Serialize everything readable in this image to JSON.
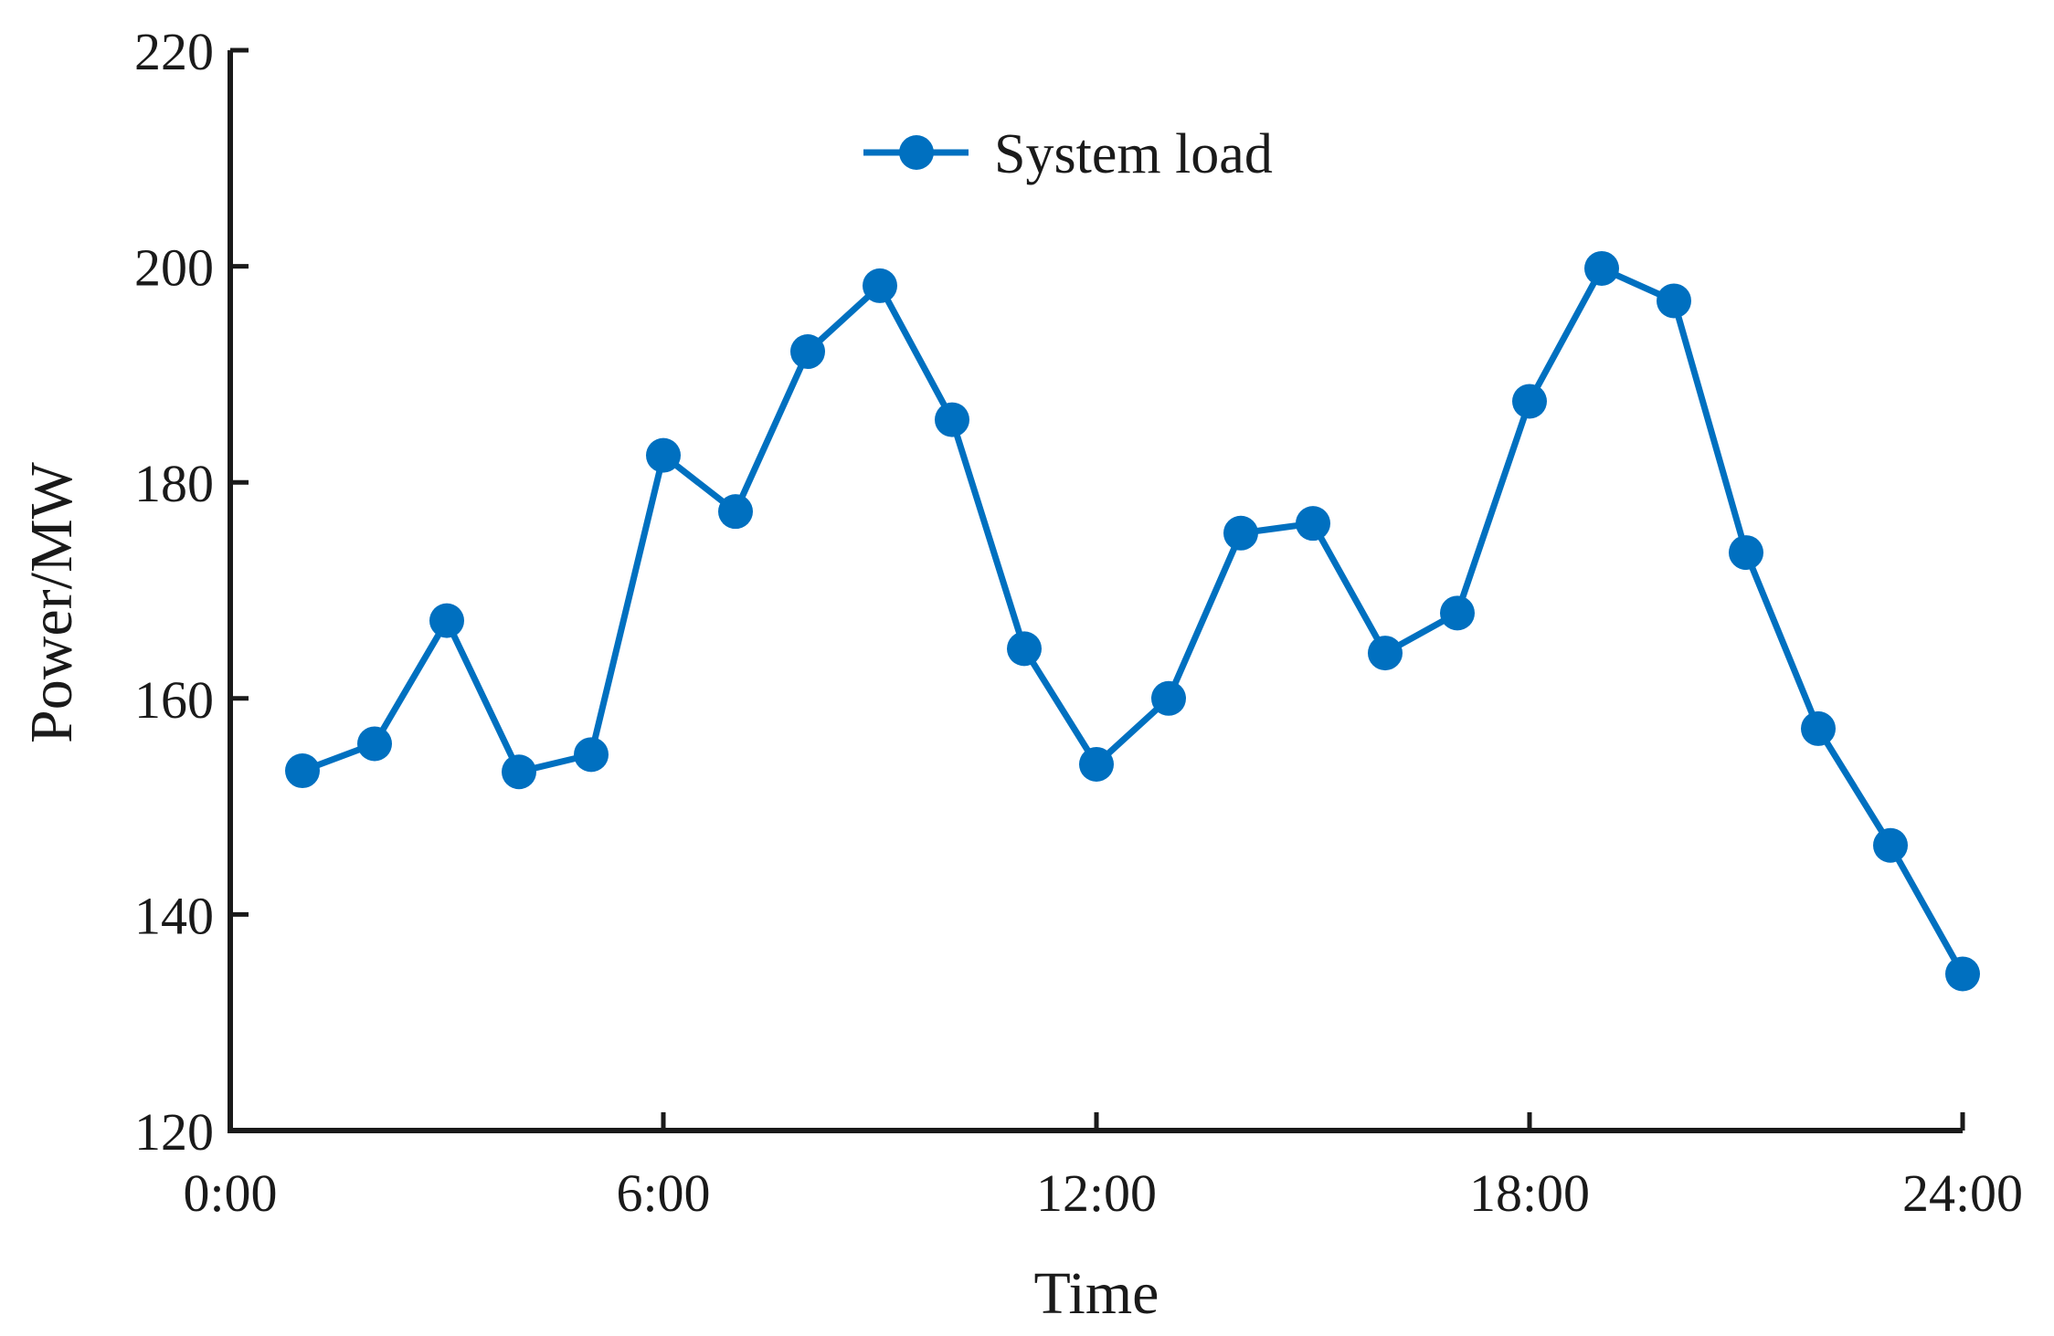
{
  "chart_data": {
    "type": "line",
    "title": "",
    "xlabel": "Time",
    "ylabel": "Power/MW",
    "xlim": [
      0,
      24
    ],
    "ylim": [
      120,
      220
    ],
    "x_ticks": [
      0,
      6,
      12,
      18,
      24
    ],
    "x_tick_labels": [
      "0:00",
      "6:00",
      "12:00",
      "18:00",
      "24:00"
    ],
    "y_ticks": [
      120,
      140,
      160,
      180,
      200,
      220
    ],
    "y_tick_labels": [
      "120",
      "140",
      "160",
      "180",
      "200",
      "220"
    ],
    "grid": false,
    "legend_position": "top-center",
    "series": [
      {
        "name": "System load",
        "color": "#0070C0",
        "marker": "circle",
        "x": [
          1,
          2,
          3,
          4,
          5,
          6,
          7,
          8,
          9,
          10,
          11,
          12,
          13,
          14,
          15,
          16,
          17,
          18,
          19,
          20,
          21,
          22,
          23,
          24
        ],
        "values": [
          153.3,
          155.8,
          167.2,
          153.2,
          154.8,
          182.5,
          177.3,
          192.1,
          198.2,
          185.8,
          164.6,
          153.9,
          160.0,
          175.3,
          176.2,
          164.2,
          167.9,
          187.5,
          199.8,
          196.8,
          173.5,
          157.2,
          146.4,
          134.5
        ]
      }
    ]
  }
}
